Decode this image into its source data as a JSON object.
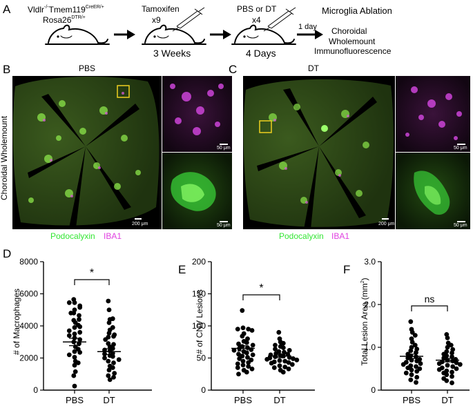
{
  "panel_letters": [
    "A",
    "B",
    "C",
    "D",
    "E",
    "F"
  ],
  "schematic": {
    "genotype_line1": "Vldlr",
    "genotype_sup1": "-/-",
    "genotype_mid": "Tmem119",
    "genotype_sup2": "CreER/+",
    "genotype_line2": "Rosa26",
    "genotype_sup3": "DTR/+",
    "step1_treatment": "Tamoxifen",
    "step1_doses": "x9",
    "step1_duration": "3 Weeks",
    "step2_treatment": "PBS or DT",
    "step2_doses": "x4",
    "step2_duration": "4 Days",
    "gap_label": "1 day",
    "outcome_title": "Microglia Ablation",
    "outcome_lines": [
      "Choroidal",
      "Wholemount",
      "Immunofluorescence"
    ]
  },
  "images": {
    "side_label": "Choroidal Wholemount",
    "panel_b_title": "PBS",
    "panel_c_title": "DT",
    "scale_large": "200 μm",
    "scale_small": "50 μm",
    "legend_green": "Podocalyxin",
    "legend_magenta": "IBA1",
    "colors": {
      "green": "#33e633",
      "magenta": "#e040e0",
      "roi_box": "#f0d020"
    }
  },
  "chart_data": [
    {
      "panel": "D",
      "type": "scatter",
      "ylabel": "# of Macrophages",
      "categories": [
        "PBS",
        "DT"
      ],
      "ylim": [
        0,
        8000
      ],
      "yticks": [
        0,
        2000,
        4000,
        6000,
        8000
      ],
      "significance": "*",
      "means": [
        3000,
        2400
      ],
      "sem": [
        230,
        180
      ],
      "series": [
        {
          "values": [
            5650,
            5450,
            5250,
            5450,
            5000,
            5150,
            4800,
            4650,
            4800,
            4350,
            4400,
            4200,
            4050,
            3900,
            3950,
            3700,
            3500,
            3600,
            3400,
            3250,
            3150,
            3000,
            2900,
            2700,
            2550,
            2400,
            2350,
            2200,
            2050,
            1800,
            1700,
            1550,
            1150,
            900,
            250
          ]
        },
        {
          "values": [
            5550,
            5000,
            4400,
            4450,
            4200,
            3750,
            3900,
            3550,
            3450,
            3300,
            3350,
            3150,
            2900,
            2850,
            2700,
            2600,
            2500,
            2450,
            2300,
            2250,
            2150,
            2100,
            2000,
            1900,
            1800,
            1700,
            1500,
            1400,
            1250,
            1050,
            900,
            800,
            650
          ]
        }
      ]
    },
    {
      "panel": "E",
      "type": "scatter",
      "ylabel": "# of CNV Lesions",
      "categories": [
        "PBS",
        "DT"
      ],
      "ylim": [
        0,
        200
      ],
      "yticks": [
        0,
        50,
        100,
        150,
        200
      ],
      "significance": "*",
      "means": [
        65,
        53
      ],
      "sem": [
        4,
        2.5
      ],
      "series": [
        {
          "values": [
            124,
            97,
            95,
            95,
            93,
            88,
            84,
            80,
            76,
            74,
            72,
            70,
            68,
            66,
            65,
            63,
            62,
            60,
            58,
            56,
            55,
            53,
            51,
            49,
            47,
            45,
            43,
            41,
            39,
            37,
            35,
            33,
            31,
            28,
            25
          ]
        },
        {
          "values": [
            90,
            80,
            75,
            73,
            70,
            68,
            66,
            64,
            62,
            60,
            59,
            57,
            56,
            55,
            54,
            53,
            52,
            51,
            50,
            49,
            48,
            47,
            46,
            45,
            44,
            43,
            42,
            40,
            38,
            36,
            35,
            33,
            31,
            28
          ]
        }
      ]
    },
    {
      "panel": "F",
      "type": "scatter",
      "ylabel_main": "Total Lesion Area (mm",
      "ylabel_sup": "2",
      "ylabel_end": ")",
      "categories": [
        "PBS",
        "DT"
      ],
      "ylim": [
        0,
        3.0
      ],
      "yticks": [
        0,
        1.0,
        2.0,
        3.0
      ],
      "ytick_labels": [
        "0",
        "1.0",
        "2.0",
        "3.0"
      ],
      "significance": "ns",
      "means": [
        0.79,
        0.7
      ],
      "sem": [
        0.05,
        0.04
      ],
      "series": [
        {
          "values": [
            1.6,
            1.42,
            1.35,
            1.28,
            1.2,
            1.12,
            1.05,
            1.0,
            0.96,
            0.92,
            0.88,
            0.84,
            0.8,
            0.78,
            0.75,
            0.72,
            0.7,
            0.68,
            0.65,
            0.62,
            0.6,
            0.57,
            0.55,
            0.52,
            0.5,
            0.47,
            0.44,
            0.4,
            0.36,
            0.3,
            0.24,
            0.18
          ]
        },
        {
          "values": [
            1.3,
            1.22,
            1.1,
            1.05,
            1.0,
            0.95,
            0.9,
            0.87,
            0.84,
            0.8,
            0.78,
            0.75,
            0.72,
            0.7,
            0.68,
            0.66,
            0.64,
            0.62,
            0.6,
            0.58,
            0.55,
            0.52,
            0.5,
            0.48,
            0.45,
            0.42,
            0.4,
            0.36,
            0.32,
            0.27,
            0.22,
            0.17
          ]
        }
      ]
    }
  ]
}
